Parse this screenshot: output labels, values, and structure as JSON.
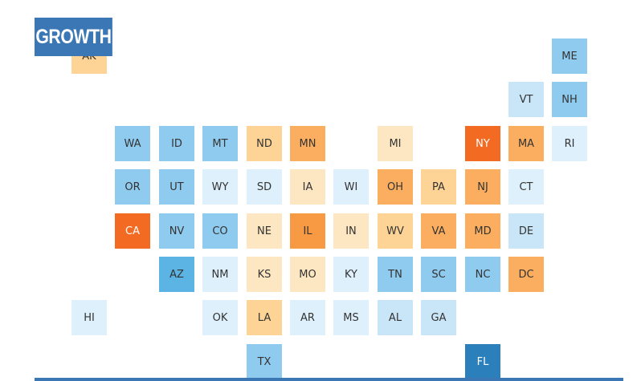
{
  "title": "GROWTH",
  "colors": {
    "badge": "#3a77b4",
    "rule": "#3a77b4",
    "scale": {
      "very_dark_blue": "#2b80bb",
      "dark_blue": "#5bb4e4",
      "blue": "#8fcbef",
      "light_blue": "#c9e6f8",
      "pale_blue": "#ddf0fb",
      "pale_orange": "#fde7c2",
      "light_orange": "#fdd495",
      "orange": "#fbae5f",
      "dark_orange": "#f89a43",
      "deep_orange": "#f36b23"
    }
  },
  "tiles": [
    {
      "state": "AK",
      "col": 0,
      "row": 0,
      "level": "light_orange"
    },
    {
      "state": "ME",
      "col": 11,
      "row": 0,
      "level": "blue"
    },
    {
      "state": "VT",
      "col": 10,
      "row": 1,
      "level": "light_blue"
    },
    {
      "state": "NH",
      "col": 11,
      "row": 1,
      "level": "blue"
    },
    {
      "state": "WA",
      "col": 1,
      "row": 2,
      "level": "blue"
    },
    {
      "state": "ID",
      "col": 2,
      "row": 2,
      "level": "blue"
    },
    {
      "state": "MT",
      "col": 3,
      "row": 2,
      "level": "blue"
    },
    {
      "state": "ND",
      "col": 4,
      "row": 2,
      "level": "light_orange"
    },
    {
      "state": "MN",
      "col": 5,
      "row": 2,
      "level": "orange"
    },
    {
      "state": "MI",
      "col": 7,
      "row": 2,
      "level": "pale_orange"
    },
    {
      "state": "NY",
      "col": 9,
      "row": 2,
      "level": "deep_orange"
    },
    {
      "state": "MA",
      "col": 10,
      "row": 2,
      "level": "orange"
    },
    {
      "state": "RI",
      "col": 11,
      "row": 2,
      "level": "pale_blue"
    },
    {
      "state": "OR",
      "col": 1,
      "row": 3,
      "level": "blue"
    },
    {
      "state": "UT",
      "col": 2,
      "row": 3,
      "level": "blue"
    },
    {
      "state": "WY",
      "col": 3,
      "row": 3,
      "level": "pale_blue"
    },
    {
      "state": "SD",
      "col": 4,
      "row": 3,
      "level": "pale_blue"
    },
    {
      "state": "IA",
      "col": 5,
      "row": 3,
      "level": "pale_orange"
    },
    {
      "state": "WI",
      "col": 6,
      "row": 3,
      "level": "pale_blue"
    },
    {
      "state": "OH",
      "col": 7,
      "row": 3,
      "level": "orange"
    },
    {
      "state": "PA",
      "col": 8,
      "row": 3,
      "level": "light_orange"
    },
    {
      "state": "NJ",
      "col": 9,
      "row": 3,
      "level": "orange"
    },
    {
      "state": "CT",
      "col": 10,
      "row": 3,
      "level": "pale_blue"
    },
    {
      "state": "CA",
      "col": 1,
      "row": 4,
      "level": "deep_orange"
    },
    {
      "state": "NV",
      "col": 2,
      "row": 4,
      "level": "blue"
    },
    {
      "state": "CO",
      "col": 3,
      "row": 4,
      "level": "blue"
    },
    {
      "state": "NE",
      "col": 4,
      "row": 4,
      "level": "pale_orange"
    },
    {
      "state": "IL",
      "col": 5,
      "row": 4,
      "level": "dark_orange"
    },
    {
      "state": "IN",
      "col": 6,
      "row": 4,
      "level": "pale_orange"
    },
    {
      "state": "WV",
      "col": 7,
      "row": 4,
      "level": "light_orange"
    },
    {
      "state": "VA",
      "col": 8,
      "row": 4,
      "level": "orange"
    },
    {
      "state": "MD",
      "col": 9,
      "row": 4,
      "level": "orange"
    },
    {
      "state": "DE",
      "col": 10,
      "row": 4,
      "level": "light_blue"
    },
    {
      "state": "AZ",
      "col": 2,
      "row": 5,
      "level": "dark_blue"
    },
    {
      "state": "NM",
      "col": 3,
      "row": 5,
      "level": "pale_blue"
    },
    {
      "state": "KS",
      "col": 4,
      "row": 5,
      "level": "pale_orange"
    },
    {
      "state": "MO",
      "col": 5,
      "row": 5,
      "level": "pale_orange"
    },
    {
      "state": "KY",
      "col": 6,
      "row": 5,
      "level": "pale_blue"
    },
    {
      "state": "TN",
      "col": 7,
      "row": 5,
      "level": "blue"
    },
    {
      "state": "SC",
      "col": 8,
      "row": 5,
      "level": "blue"
    },
    {
      "state": "NC",
      "col": 9,
      "row": 5,
      "level": "blue"
    },
    {
      "state": "DC",
      "col": 10,
      "row": 5,
      "level": "orange"
    },
    {
      "state": "HI",
      "col": 0,
      "row": 6,
      "level": "pale_blue"
    },
    {
      "state": "OK",
      "col": 3,
      "row": 6,
      "level": "pale_blue"
    },
    {
      "state": "LA",
      "col": 4,
      "row": 6,
      "level": "light_orange"
    },
    {
      "state": "AR",
      "col": 5,
      "row": 6,
      "level": "pale_blue"
    },
    {
      "state": "MS",
      "col": 6,
      "row": 6,
      "level": "pale_blue"
    },
    {
      "state": "AL",
      "col": 7,
      "row": 6,
      "level": "light_blue"
    },
    {
      "state": "GA",
      "col": 8,
      "row": 6,
      "level": "light_blue"
    },
    {
      "state": "TX",
      "col": 4,
      "row": 7,
      "level": "blue"
    },
    {
      "state": "FL",
      "col": 9,
      "row": 7,
      "level": "very_dark_blue"
    }
  ]
}
